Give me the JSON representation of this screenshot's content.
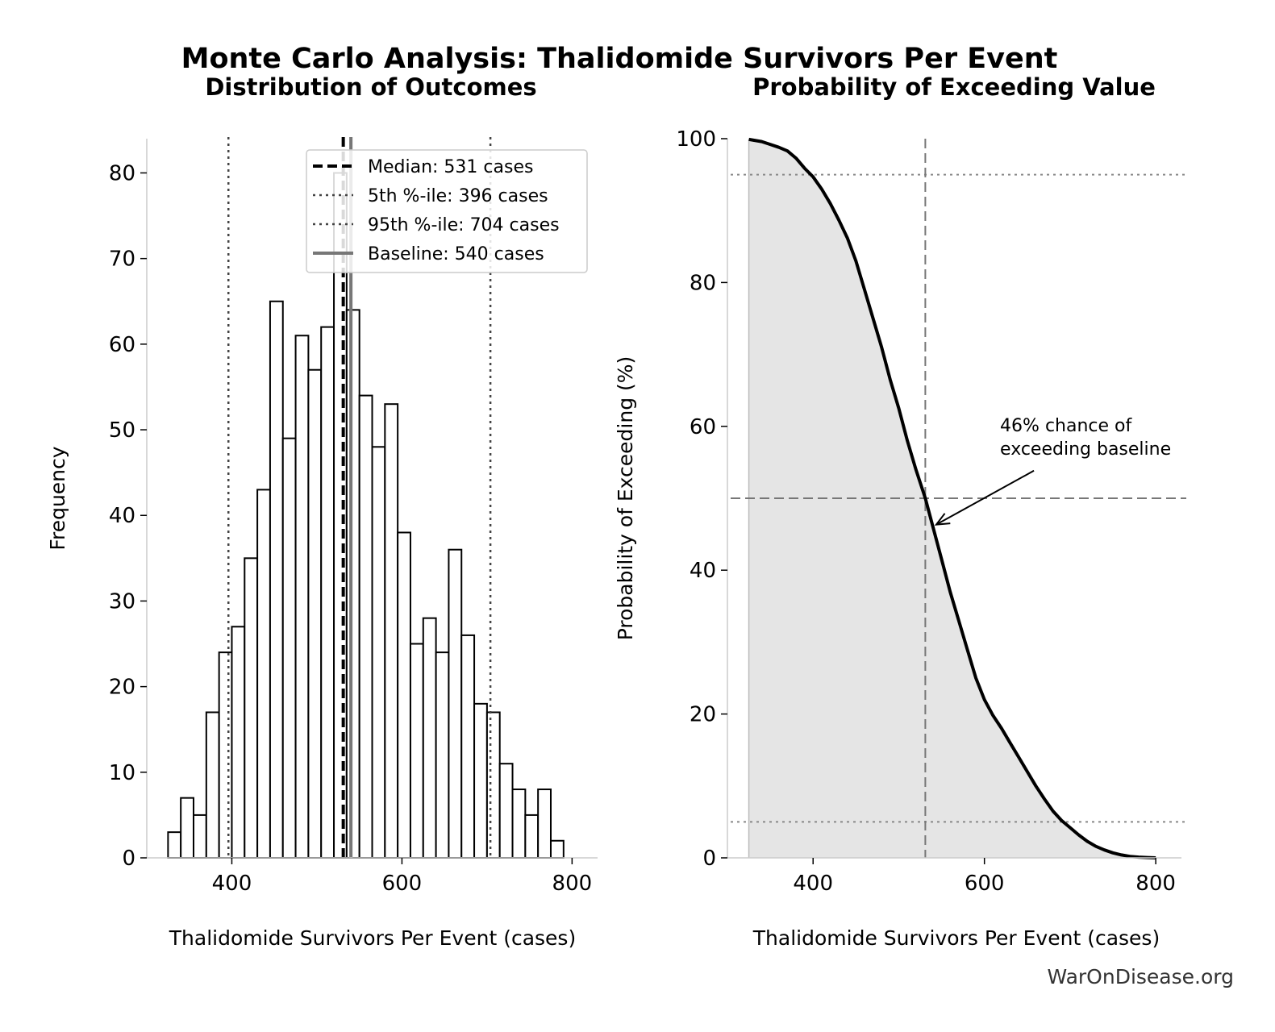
{
  "figure": {
    "title": "Monte Carlo Analysis: Thalidomide Survivors Per Event",
    "watermark": "WarOnDisease.org"
  },
  "chart_data": [
    {
      "type": "bar",
      "subtype": "histogram",
      "title": "Distribution of Outcomes",
      "xlabel": "Thalidomide Survivors Per Event (cases)",
      "ylabel": "Frequency",
      "xlim": [
        300,
        830
      ],
      "ylim": [
        0,
        84
      ],
      "xticks": [
        400,
        600,
        800
      ],
      "yticks": [
        0,
        10,
        20,
        30,
        40,
        50,
        60,
        70,
        80
      ],
      "bin_start": 325,
      "bin_width": 15,
      "counts": [
        3,
        7,
        5,
        17,
        24,
        27,
        35,
        43,
        65,
        49,
        61,
        57,
        62,
        80,
        64,
        54,
        48,
        53,
        38,
        25,
        28,
        24,
        36,
        26,
        18,
        17,
        11,
        8,
        5,
        8,
        2
      ],
      "reference_lines": [
        {
          "name": "Median: 531 cases",
          "x": 531,
          "style": "dashed",
          "color": "#000000"
        },
        {
          "name": "5th %-ile: 396 cases",
          "x": 396,
          "style": "dotted",
          "color": "#444444"
        },
        {
          "name": "95th %-ile: 704 cases",
          "x": 704,
          "style": "dotted",
          "color": "#444444"
        },
        {
          "name": "Baseline: 540 cases",
          "x": 540,
          "style": "solid",
          "color": "#777777"
        }
      ],
      "legend_position": "top-right",
      "grid": false
    },
    {
      "type": "area",
      "title": "Probability of Exceeding Value",
      "xlabel": "Thalidomide Survivors Per Event (cases)",
      "ylabel": "Probability of Exceeding (%)",
      "xlim": [
        300,
        830
      ],
      "ylim": [
        0,
        100
      ],
      "xticks": [
        400,
        600,
        800
      ],
      "yticks": [
        0,
        20,
        40,
        60,
        80,
        100
      ],
      "x": [
        325,
        340,
        350,
        360,
        370,
        380,
        390,
        400,
        410,
        420,
        430,
        440,
        450,
        460,
        470,
        480,
        490,
        500,
        510,
        520,
        531,
        540,
        550,
        560,
        570,
        580,
        590,
        600,
        610,
        620,
        630,
        640,
        650,
        660,
        670,
        680,
        690,
        700,
        710,
        720,
        730,
        740,
        750,
        760,
        770,
        780,
        790,
        800
      ],
      "y": [
        99.9,
        99.6,
        99.2,
        98.8,
        98.3,
        97.3,
        95.9,
        94.7,
        93.0,
        91.0,
        88.7,
        86.2,
        83.0,
        79.0,
        75.0,
        71.0,
        66.5,
        62.5,
        58.0,
        54.0,
        50.0,
        46.0,
        41.5,
        37.0,
        33.0,
        29.0,
        25.0,
        22.0,
        19.8,
        18.0,
        16.0,
        14.0,
        12.0,
        10.0,
        8.2,
        6.5,
        5.2,
        4.2,
        3.2,
        2.3,
        1.6,
        1.1,
        0.7,
        0.4,
        0.2,
        0.1,
        0.05,
        0.0
      ],
      "hlines": [
        {
          "y": 95,
          "style": "dotted",
          "color": "#888888"
        },
        {
          "y": 50,
          "style": "dashed",
          "color": "#777777"
        },
        {
          "y": 5,
          "style": "dotted",
          "color": "#888888"
        }
      ],
      "vlines": [
        {
          "x": 531,
          "style": "dashed",
          "color": "#777777"
        }
      ],
      "fill_color": "#e5e5e5",
      "annotation": {
        "text_lines": [
          "46% chance of",
          "exceeding baseline"
        ],
        "target": [
          540,
          46
        ],
        "text_anchor": [
          590,
          60
        ]
      },
      "grid": false
    }
  ]
}
